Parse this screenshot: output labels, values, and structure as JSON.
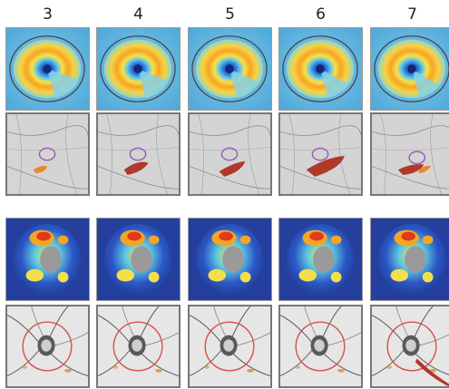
{
  "columns": [
    {
      "label": "3"
    },
    {
      "label": "4"
    },
    {
      "label": "5"
    },
    {
      "label": "6"
    },
    {
      "label": "7"
    }
  ],
  "rows": [
    {
      "kind": "macula-thickness-map"
    },
    {
      "kind": "macula-fundus-image"
    },
    {
      "kind": "disc-thickness-map"
    },
    {
      "kind": "disc-fundus-image"
    }
  ],
  "colors": {
    "map_background": "#4fa8d8",
    "map_warm": "#f5a524",
    "map_hot": "#e03a1c",
    "fundus_background": "#d4d4d4",
    "defect_orange": "#e58a2a",
    "defect_red": "#b0392a",
    "circle_purple": "#9b59b6",
    "circle_red": "#d9534f"
  }
}
